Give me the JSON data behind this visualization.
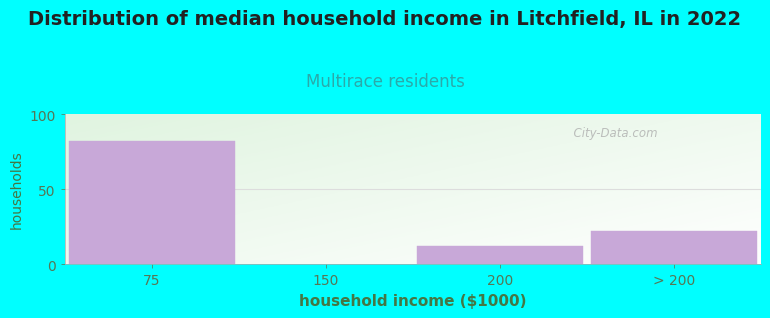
{
  "title": "Distribution of median household income in Litchfield, IL in 2022",
  "subtitle": "Multirace residents",
  "xlabel": "household income ($1000)",
  "ylabel": "households",
  "categories": [
    "75",
    "150",
    "200",
    "> 200"
  ],
  "values": [
    82,
    0,
    12,
    22
  ],
  "bar_color": "#c8a8d8",
  "bar_edge_color": "#c8a8d8",
  "background_color": "#00ffff",
  "title_fontsize": 14,
  "subtitle_fontsize": 12,
  "title_color": "#222222",
  "subtitle_color": "#2aaaaa",
  "axis_label_color": "#447744",
  "tick_color": "#557755",
  "xlabel_fontsize": 11,
  "ylabel_fontsize": 10,
  "tick_fontsize": 10,
  "ylim": [
    0,
    100
  ],
  "yticks": [
    0,
    50,
    100
  ],
  "watermark": "  City-Data.com",
  "grid_color": "#dddddd",
  "plot_bg_color_topleft": "#e8f5e8",
  "plot_bg_color_bottomright": "#f8fff8"
}
